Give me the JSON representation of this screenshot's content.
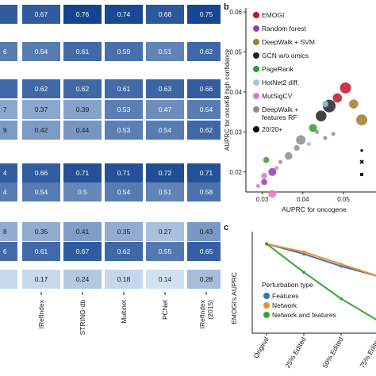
{
  "heatmap": {
    "columns": [
      "IRefIndex",
      "STRING-db",
      "Multinet",
      "PCNet",
      "IRefIndex (2015)"
    ],
    "rows": [
      {
        "left": "",
        "values": [
          "0.67",
          "0.76",
          "0.74",
          "0.68",
          "0.75"
        ]
      },
      {
        "left": "6",
        "values": [
          "0.54",
          "0.61",
          "0.59",
          "0.51",
          "0.62"
        ]
      },
      {
        "left": "",
        "values": [
          "0.62",
          "0.62",
          "0.61",
          "0.63",
          "0.66"
        ]
      },
      {
        "left": "7",
        "values": [
          "0.37",
          "0.39",
          "0.53",
          "0.47",
          "0.54"
        ]
      },
      {
        "left": "9",
        "values": [
          "0.42",
          "0.44",
          "0.53",
          "0.54",
          "0.62"
        ]
      },
      {
        "left": "4",
        "values": [
          "0.66",
          "0.71",
          "0.71",
          "0.72",
          "0.71"
        ]
      },
      {
        "left": "4",
        "values": [
          "0.54",
          "0.5",
          "0.54",
          "0.51",
          "0.58"
        ]
      },
      {
        "left": "8",
        "values": [
          "0.35",
          "0.41",
          "0.35",
          "0.27",
          "0.43"
        ]
      },
      {
        "left": "6",
        "values": [
          "0.61",
          "0.67",
          "0.62",
          "0.55",
          "0.65"
        ]
      },
      {
        "left": "",
        "values": [
          "0.17",
          "0.24",
          "0.18",
          "0.14",
          "0.28"
        ]
      }
    ]
  },
  "panel_b": {
    "letter": "b",
    "xlabel": "AUPRC for oncogene",
    "ylabel": "AUPRC for oncoKB high confidence",
    "xticks": [
      "0.03",
      "0.04",
      "0.05"
    ],
    "yticks": [
      "0.02",
      "0.03",
      "0.04",
      "0.05",
      "0.06"
    ],
    "legend": [
      {
        "label": "EMOGI",
        "color": "#c8102e"
      },
      {
        "label": "Random forest",
        "color": "#8e3fb0"
      },
      {
        "label": "DeepWalk + SVM",
        "color": "#a07d2e"
      },
      {
        "label": "GCN w/o omics",
        "color": "#222222"
      },
      {
        "label": "PageRank",
        "color": "#2ca02c"
      },
      {
        "label": "HotNet2 diff.",
        "color": "#9ecae1"
      },
      {
        "label": "MutSigCV",
        "color": "#e377c2"
      },
      {
        "label": "DeepWalk + features RF",
        "color": "#8c8c8c"
      },
      {
        "label": "20/20+",
        "color": "#000000"
      }
    ]
  },
  "panel_c": {
    "letter": "c",
    "ylabel": "EMOGI's AUPRC",
    "xticks": [
      "Original",
      "25% Edited",
      "50% Edited",
      "75% Edited"
    ],
    "legend_title": "Perturbation type",
    "legend": [
      {
        "label": "Features",
        "color": "#3b73b9"
      },
      {
        "label": "Network",
        "color": "#f28e2b"
      },
      {
        "label": "Network and features",
        "color": "#3aa637"
      }
    ]
  },
  "chart_data": [
    {
      "type": "heatmap",
      "columns": [
        "IRefIndex",
        "STRING-db",
        "Multinet",
        "PCNet",
        "IRefIndex (2015)"
      ],
      "values": [
        [
          0.67,
          0.76,
          0.74,
          0.68,
          0.75
        ],
        [
          0.54,
          0.61,
          0.59,
          0.51,
          0.62
        ],
        [
          0.62,
          0.62,
          0.61,
          0.63,
          0.66
        ],
        [
          0.37,
          0.39,
          0.53,
          0.47,
          0.54
        ],
        [
          0.42,
          0.44,
          0.53,
          0.54,
          0.62
        ],
        [
          0.66,
          0.71,
          0.71,
          0.72,
          0.71
        ],
        [
          0.54,
          0.5,
          0.54,
          0.51,
          0.58
        ],
        [
          0.35,
          0.41,
          0.35,
          0.27,
          0.43
        ],
        [
          0.61,
          0.67,
          0.62,
          0.55,
          0.65
        ],
        [
          0.17,
          0.24,
          0.18,
          0.14,
          0.28
        ]
      ]
    },
    {
      "type": "scatter",
      "xlabel": "AUPRC for oncogene",
      "ylabel": "AUPRC for oncoKB high confidence",
      "xlim": [
        0.026,
        0.058
      ],
      "ylim": [
        0.015,
        0.061
      ],
      "series": [
        {
          "name": "EMOGI",
          "color": "#c8102e",
          "points": [
            [
              0.0505,
              0.041
            ],
            [
              0.0485,
              0.0385
            ]
          ]
        },
        {
          "name": "Random forest",
          "color": "#8e3fb0",
          "points": [
            [
              0.0325,
              0.02
            ],
            [
              0.0305,
              0.0175
            ]
          ]
        },
        {
          "name": "DeepWalk + SVM",
          "color": "#a07d2e",
          "points": [
            [
              0.0545,
              0.033
            ],
            [
              0.0525,
              0.037
            ]
          ]
        },
        {
          "name": "GCN w/o omics",
          "color": "#222222",
          "points": [
            [
              0.0465,
              0.0365
            ],
            [
              0.0445,
              0.034
            ]
          ]
        },
        {
          "name": "PageRank",
          "color": "#2ca02c",
          "points": [
            [
              0.0425,
              0.031
            ],
            [
              0.031,
              0.023
            ]
          ]
        },
        {
          "name": "HotNet2 diff.",
          "color": "#9ecae1",
          "points": [
            [
              0.0455,
              0.037
            ],
            [
              0.0415,
              0.027
            ]
          ]
        },
        {
          "name": "MutSigCV",
          "color": "#e377c2",
          "points": [
            [
              0.0325,
              0.0145
            ],
            [
              0.0305,
              0.019
            ],
            [
              0.029,
              0.0165
            ],
            [
              0.0335,
              0.021
            ]
          ]
        },
        {
          "name": "DeepWalk + features RF",
          "color": "#8c8c8c",
          "points": [
            [
              0.0395,
              0.028
            ],
            [
              0.0365,
              0.024
            ],
            [
              0.0385,
              0.026
            ],
            [
              0.0345,
              0.0225
            ],
            [
              0.0455,
              0.0285
            ],
            [
              0.0475,
              0.0295
            ],
            [
              0.0435,
              0.03
            ]
          ]
        },
        {
          "name": "20/20+",
          "color": "#000000",
          "points": [
            [
              0.0545,
              0.0255
            ],
            [
              0.0545,
              0.0225
            ],
            [
              0.0545,
              0.0195
            ]
          ]
        }
      ]
    },
    {
      "type": "line",
      "ylabel": "EMOGI's AUPRC",
      "categories": [
        "Original",
        "25% Edited",
        "50% Edited",
        "75% Edited"
      ],
      "ylim": [
        0.0,
        1.0
      ],
      "series": [
        {
          "name": "Features",
          "color": "#3b73b9",
          "values": [
            0.74,
            0.69,
            0.63,
            0.58
          ]
        },
        {
          "name": "Network",
          "color": "#f28e2b",
          "values": [
            0.74,
            0.7,
            0.64,
            0.58
          ]
        },
        {
          "name": "Network and features",
          "color": "#3aa637",
          "values": [
            0.74,
            0.6,
            0.47,
            0.36
          ]
        }
      ]
    }
  ]
}
